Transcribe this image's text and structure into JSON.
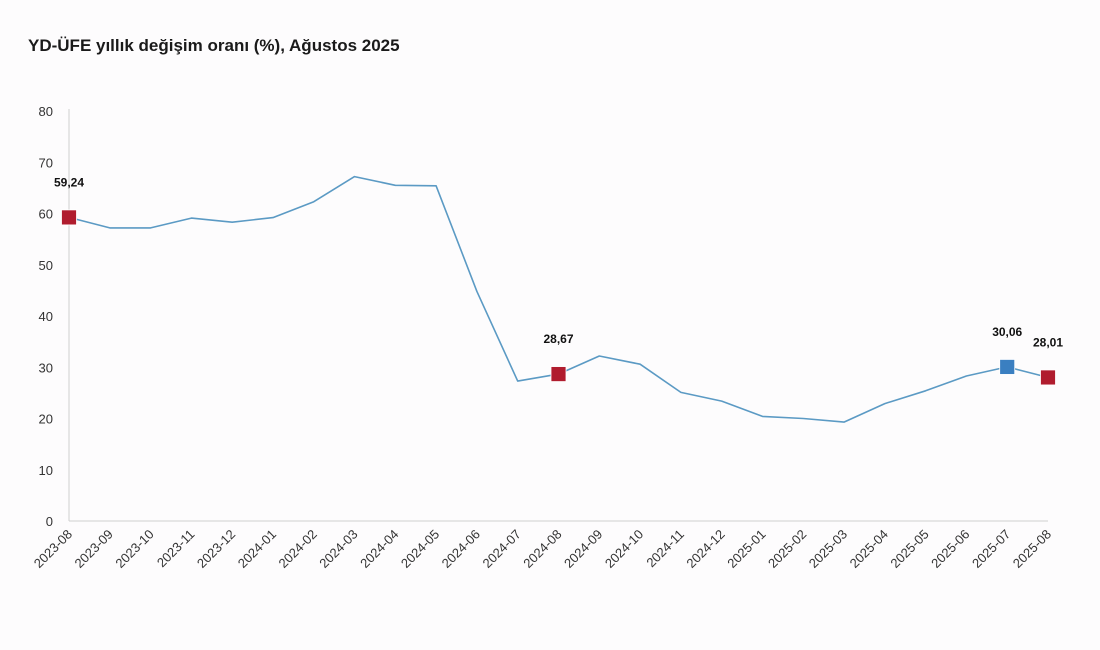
{
  "chart_data": {
    "type": "line",
    "title": "YD-ÜFE yıllık değişim oranı (%), Ağustos 2025",
    "xlabel": "",
    "ylabel": "",
    "ylim": [
      0,
      80
    ],
    "yticks": [
      "0",
      "10",
      "20",
      "30",
      "40",
      "50",
      "60",
      "70",
      "80"
    ],
    "grid": false,
    "categories": [
      "2023-08",
      "2023-09",
      "2023-10",
      "2023-11",
      "2023-12",
      "2024-01",
      "2024-02",
      "2024-03",
      "2024-04",
      "2024-05",
      "2024-06",
      "2024-07",
      "2024-08",
      "2024-09",
      "2024-10",
      "2024-11",
      "2024-12",
      "2025-01",
      "2025-02",
      "2025-03",
      "2025-04",
      "2025-05",
      "2025-06",
      "2025-07",
      "2025-08"
    ],
    "series": [
      {
        "color": "#5b9ac4",
        "values": [
          59.24,
          57.2,
          57.2,
          59.1,
          58.3,
          59.2,
          62.3,
          67.2,
          65.5,
          65.4,
          44.8,
          27.3,
          28.67,
          32.2,
          30.6,
          25.1,
          23.4,
          20.4,
          20.0,
          19.3,
          22.9,
          25.4,
          28.3,
          30.06,
          28.01
        ]
      }
    ],
    "annotations": [
      {
        "index": 0,
        "label": "59,24",
        "marker_color": "#b01c2e"
      },
      {
        "index": 12,
        "label": "28,67",
        "marker_color": "#b01c2e"
      },
      {
        "index": 23,
        "label": "30,06",
        "marker_color": "#3a7fc1"
      },
      {
        "index": 24,
        "label": "28,01",
        "marker_color": "#b01c2e"
      }
    ]
  }
}
